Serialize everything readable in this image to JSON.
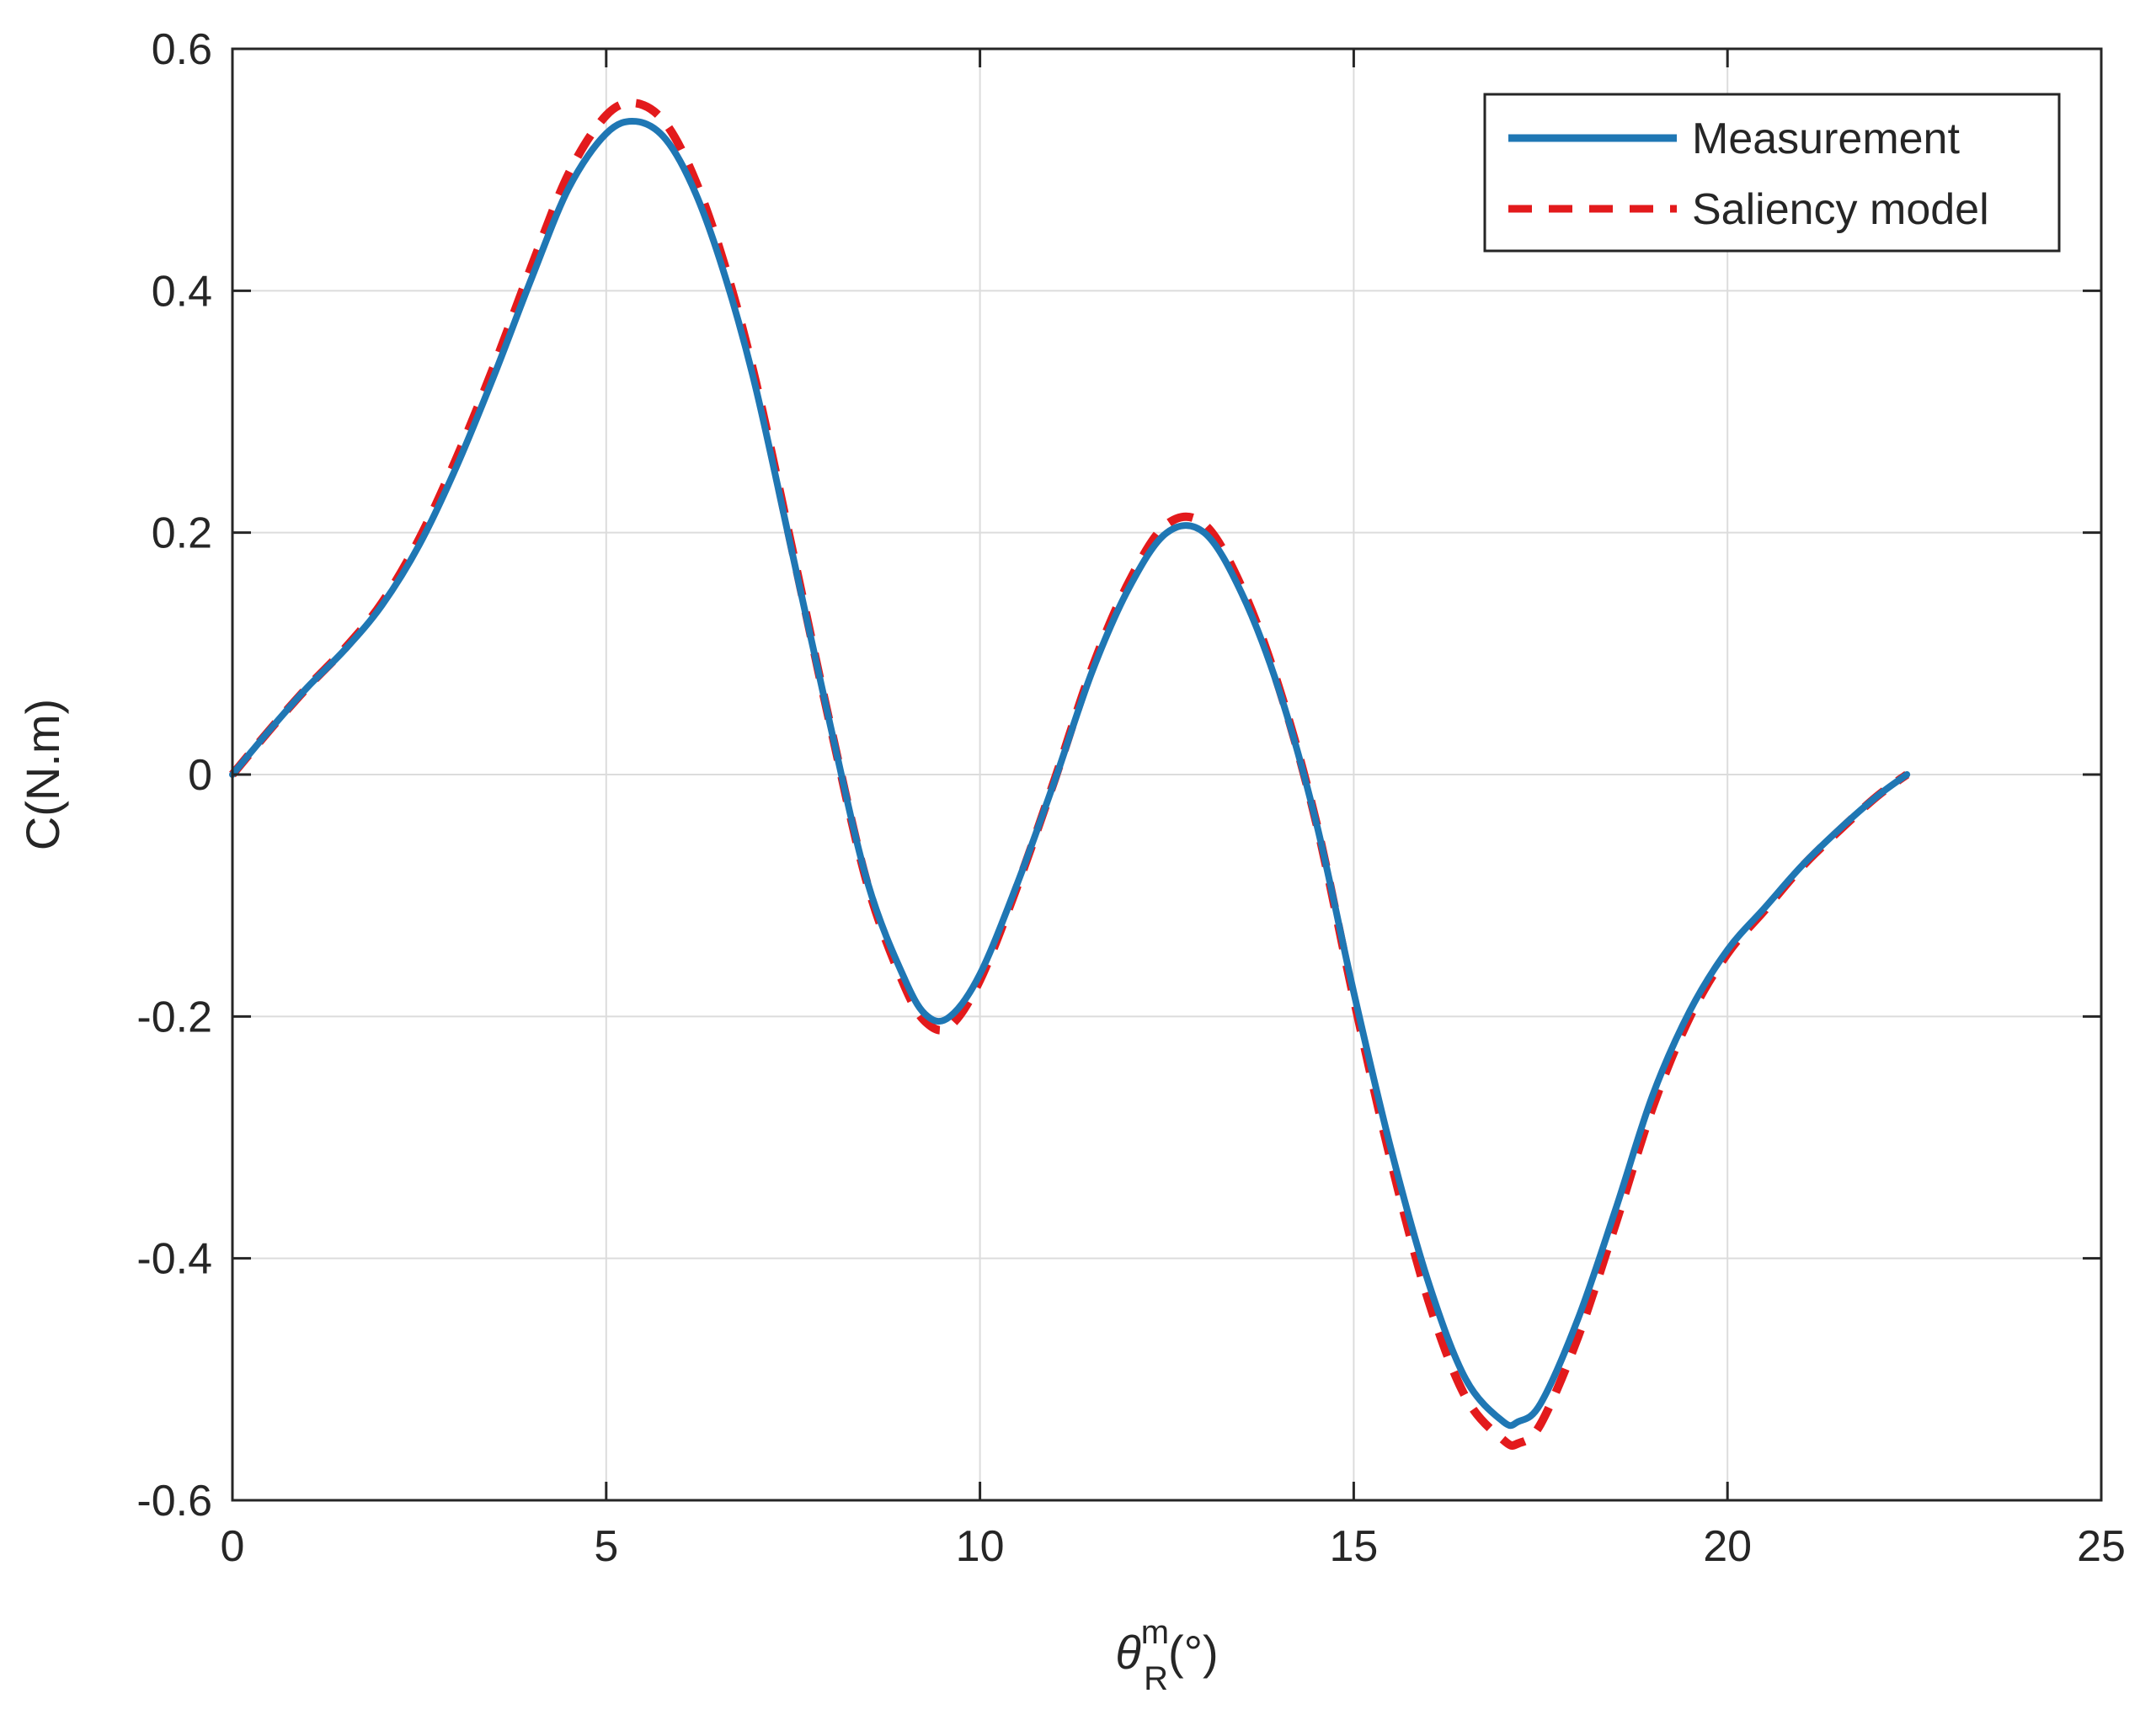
{
  "chart_data": {
    "type": "line",
    "title": "",
    "xlabel": {
      "symbol": "θ",
      "superscript": "m",
      "subscript": "R",
      "unit": "(°)"
    },
    "ylabel": "C(N.m)",
    "xlim": [
      0,
      25
    ],
    "ylim": [
      -0.6,
      0.6
    ],
    "x_ticks": [
      0,
      5,
      10,
      15,
      20,
      25
    ],
    "x_tick_labels": [
      "0",
      "5",
      "10",
      "15",
      "20",
      "25"
    ],
    "y_ticks": [
      -0.6,
      -0.4,
      -0.2,
      0,
      0.2,
      0.4,
      0.6
    ],
    "y_tick_labels": [
      "-0.6",
      "-0.4",
      "-0.2",
      "0",
      "0.2",
      "0.4",
      "0.6"
    ],
    "grid": true,
    "legend_position": "top-right",
    "series": [
      {
        "name": "Measurement",
        "color": "#1f77b4",
        "style": "solid",
        "x": [
          0,
          0.5,
          1,
          1.5,
          2,
          2.5,
          3,
          3.5,
          4,
          4.5,
          5,
          5.4,
          5.8,
          6.2,
          6.6,
          7,
          7.5,
          8,
          8.5,
          9,
          9.3,
          9.6,
          10,
          10.5,
          11,
          11.5,
          12,
          12.5,
          13,
          13.5,
          14,
          14.5,
          15,
          15.5,
          16,
          16.5,
          17,
          17.2,
          17.5,
          18,
          18.5,
          19,
          19.5,
          20,
          20.5,
          21,
          21.5,
          22,
          22.4
        ],
        "y": [
          0,
          0.037,
          0.072,
          0.103,
          0.14,
          0.19,
          0.255,
          0.33,
          0.41,
          0.485,
          0.53,
          0.54,
          0.525,
          0.48,
          0.41,
          0.32,
          0.18,
          0.04,
          -0.09,
          -0.17,
          -0.2,
          -0.2,
          -0.165,
          -0.09,
          -0.005,
          0.085,
          0.155,
          0.2,
          0.2,
          0.15,
          0.07,
          -0.04,
          -0.18,
          -0.31,
          -0.42,
          -0.5,
          -0.535,
          -0.535,
          -0.52,
          -0.45,
          -0.36,
          -0.265,
          -0.195,
          -0.145,
          -0.11,
          -0.075,
          -0.045,
          -0.018,
          0
        ]
      },
      {
        "name": "Saliency model",
        "color": "#e31a1c",
        "style": "dashed",
        "x": [
          0,
          0.5,
          1,
          1.5,
          2,
          2.5,
          3,
          3.5,
          4,
          4.5,
          5,
          5.4,
          5.8,
          6.2,
          6.6,
          7,
          7.5,
          8,
          8.5,
          9,
          9.3,
          9.6,
          10,
          10.5,
          11,
          11.5,
          12,
          12.5,
          13,
          13.5,
          14,
          14.5,
          15,
          15.5,
          16,
          16.5,
          17,
          17.2,
          17.5,
          18,
          18.5,
          19,
          19.5,
          20,
          20.5,
          21,
          21.5,
          22,
          22.4
        ],
        "y": [
          0,
          0.037,
          0.072,
          0.104,
          0.142,
          0.195,
          0.262,
          0.338,
          0.42,
          0.497,
          0.545,
          0.555,
          0.538,
          0.49,
          0.418,
          0.325,
          0.183,
          0.04,
          -0.092,
          -0.176,
          -0.206,
          -0.208,
          -0.17,
          -0.092,
          -0.004,
          0.088,
          0.16,
          0.207,
          0.207,
          0.155,
          0.072,
          -0.04,
          -0.185,
          -0.32,
          -0.435,
          -0.515,
          -0.55,
          -0.553,
          -0.537,
          -0.465,
          -0.372,
          -0.275,
          -0.2,
          -0.148,
          -0.112,
          -0.076,
          -0.046,
          -0.018,
          0
        ]
      }
    ]
  }
}
